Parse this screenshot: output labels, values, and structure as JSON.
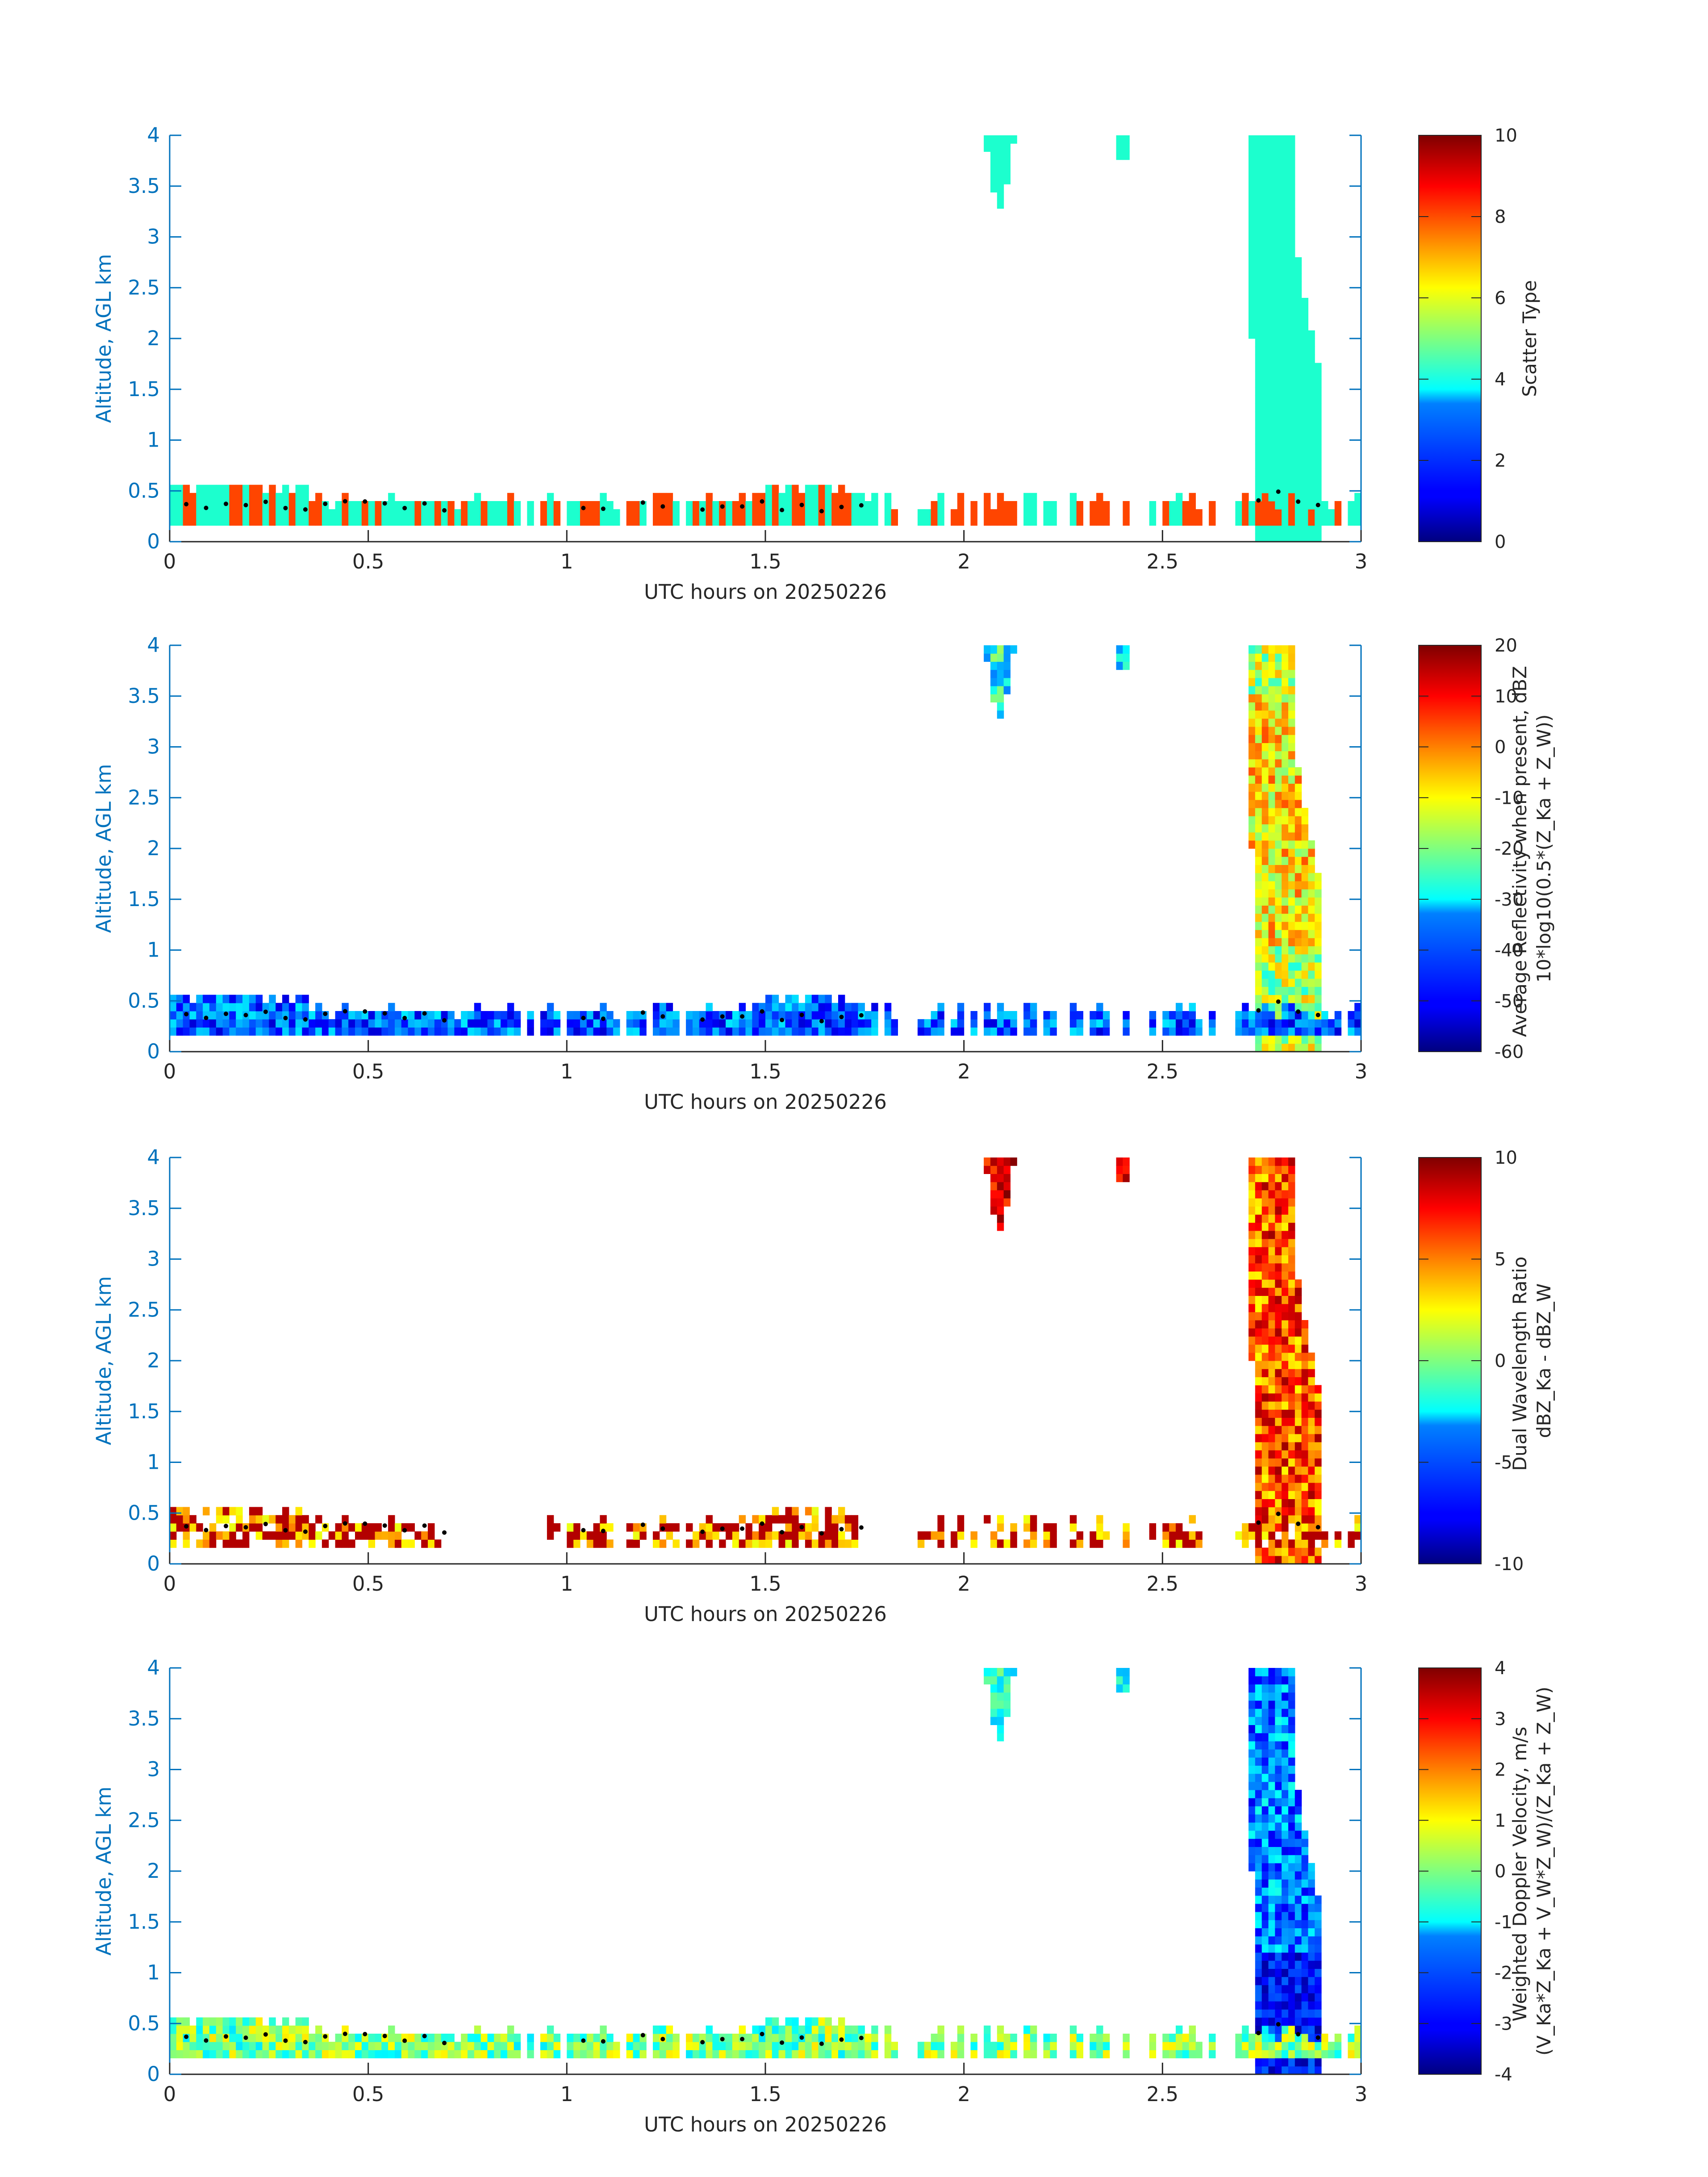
{
  "chart_data": [
    {
      "type": "heatmap",
      "id": "scatter-type",
      "xlabel": "UTC hours on 20250226",
      "ylabel": "Altitude, AGL km",
      "xlim": [
        0,
        3
      ],
      "ylim": [
        0,
        4
      ],
      "xticks": [
        "0",
        "0.5",
        "1",
        "1.5",
        "2",
        "2.5",
        "3"
      ],
      "yticks": [
        "0",
        "0.5",
        "1",
        "1.5",
        "2",
        "2.5",
        "3",
        "3.5",
        "4"
      ],
      "colorbar_label_lines": [
        "Scatter Type"
      ],
      "clim": [
        0,
        10
      ],
      "colorbar_ticks": [
        "0",
        "2",
        "4",
        "6",
        "8",
        "10"
      ],
      "pattern": "scatter"
    },
    {
      "type": "heatmap",
      "id": "reflectivity",
      "xlabel": "UTC hours on 20250226",
      "ylabel": "Altitude, AGL km",
      "xlim": [
        0,
        3
      ],
      "ylim": [
        0,
        4
      ],
      "xticks": [
        "0",
        "0.5",
        "1",
        "1.5",
        "2",
        "2.5",
        "3"
      ],
      "yticks": [
        "0",
        "0.5",
        "1",
        "1.5",
        "2",
        "2.5",
        "3",
        "3.5",
        "4"
      ],
      "colorbar_label_lines": [
        "Average Reflectivity when present, dBZ",
        "10*log10(0.5*(Z_Ka + Z_W))"
      ],
      "clim": [
        -60,
        20
      ],
      "colorbar_ticks": [
        "-60",
        "-50",
        "-40",
        "-30",
        "-20",
        "-10",
        "0",
        "10",
        "20"
      ],
      "pattern": "reflectivity"
    },
    {
      "type": "heatmap",
      "id": "dwr",
      "xlabel": "UTC hours on 20250226",
      "ylabel": "Altitude, AGL km",
      "xlim": [
        0,
        3
      ],
      "ylim": [
        0,
        4
      ],
      "xticks": [
        "0",
        "0.5",
        "1",
        "1.5",
        "2",
        "2.5",
        "3"
      ],
      "yticks": [
        "0",
        "0.5",
        "1",
        "1.5",
        "2",
        "2.5",
        "3",
        "3.5",
        "4"
      ],
      "colorbar_label_lines": [
        "Dual Wavelength Ratio",
        "dBZ_Ka - dBZ_W"
      ],
      "clim": [
        -10,
        10
      ],
      "colorbar_ticks": [
        "-10",
        "-5",
        "0",
        "5",
        "10"
      ],
      "pattern": "dwr"
    },
    {
      "type": "heatmap",
      "id": "doppler",
      "xlabel": "UTC hours on 20250226",
      "ylabel": "Altitude, AGL km",
      "xlim": [
        0,
        3
      ],
      "ylim": [
        0,
        4
      ],
      "xticks": [
        "0",
        "0.5",
        "1",
        "1.5",
        "2",
        "2.5",
        "3"
      ],
      "yticks": [
        "0",
        "0.5",
        "1",
        "1.5",
        "2",
        "2.5",
        "3",
        "3.5",
        "4"
      ],
      "colorbar_label_lines": [
        "Weighted Doppler Velocity, m/s",
        "(V_Ka*Z_Ka + V_W*Z_W)/(Z_Ka + Z_W)"
      ],
      "clim": [
        -4,
        4
      ],
      "colorbar_ticks": [
        "-4",
        "-3",
        "-2",
        "-1",
        "0",
        "1",
        "2",
        "3",
        "4"
      ],
      "pattern": "doppler"
    }
  ],
  "features": {
    "boundary_layer_hours": [
      0,
      3
    ],
    "boundary_layer_top_km": [
      0.3,
      0.6
    ],
    "main_plume": {
      "start_hour": 2.72,
      "end_hour": 2.9,
      "top_km": 4
    },
    "upper_patches": [
      {
        "center_hour": 2.09,
        "bottom_km": 3.3,
        "top_km": 4
      },
      {
        "center_hour": 2.4,
        "bottom_km": 3.55,
        "top_km": 4
      }
    ]
  },
  "colors": {
    "axis": "#0072BD",
    "text": "#262626",
    "scatter_low": "#1CFFCE",
    "scatter_high": "#FF4500",
    "marker": "#000000"
  }
}
